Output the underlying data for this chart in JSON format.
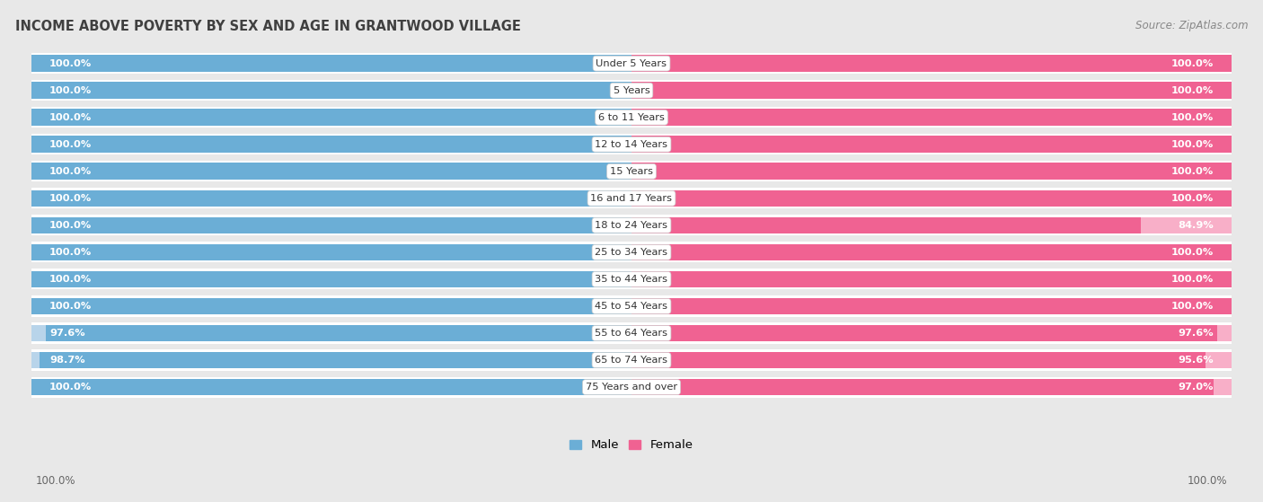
{
  "title": "INCOME ABOVE POVERTY BY SEX AND AGE IN GRANTWOOD VILLAGE",
  "source": "Source: ZipAtlas.com",
  "categories": [
    "Under 5 Years",
    "5 Years",
    "6 to 11 Years",
    "12 to 14 Years",
    "15 Years",
    "16 and 17 Years",
    "18 to 24 Years",
    "25 to 34 Years",
    "35 to 44 Years",
    "45 to 54 Years",
    "55 to 64 Years",
    "65 to 74 Years",
    "75 Years and over"
  ],
  "male_values": [
    100.0,
    100.0,
    100.0,
    100.0,
    100.0,
    100.0,
    100.0,
    100.0,
    100.0,
    100.0,
    97.6,
    98.7,
    100.0
  ],
  "female_values": [
    100.0,
    100.0,
    100.0,
    100.0,
    100.0,
    100.0,
    84.9,
    100.0,
    100.0,
    100.0,
    97.6,
    95.6,
    97.0
  ],
  "male_color": "#6baed6",
  "female_color": "#f06292",
  "male_color_light": "#b8d4ea",
  "female_color_light": "#f8afc8",
  "bar_height": 0.62,
  "bg_color": "#e8e8e8",
  "max_val": 100.0,
  "xlabel_bottom_left": "100.0%",
  "xlabel_bottom_right": "100.0%"
}
